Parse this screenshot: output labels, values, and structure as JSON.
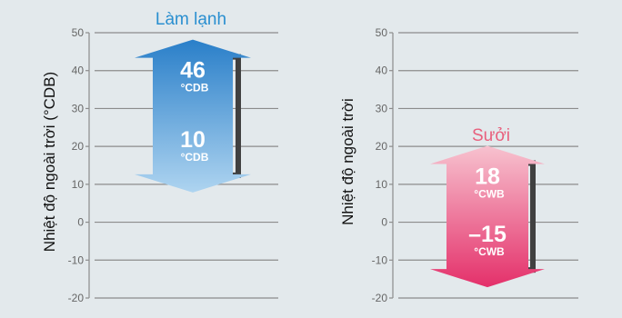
{
  "colors": {
    "panel_bg": "#e3e9ec",
    "grid_line": "#8c8c8c",
    "tick_text": "#666666",
    "cooling_title": "#2a8fd0",
    "cooling_arrow_top": "#2a7fc9",
    "cooling_arrow_bottom": "#aed4f0",
    "heating_title": "#e8607d",
    "heating_arrow_top": "#f7c2cf",
    "heating_arrow_bottom": "#e4306a",
    "bracket": "#404040"
  },
  "chart_data": [
    {
      "type": "range",
      "title": "Làm lạnh",
      "ylabel": "Nhiệt độ ngoài trời (°CDB)",
      "ylim": [
        -20,
        50
      ],
      "yticks": [
        50,
        40,
        30,
        20,
        10,
        0,
        -10,
        -20
      ],
      "ytick_labels": [
        "50",
        "40",
        "30",
        "20",
        "10",
        "0",
        "-10",
        "-20"
      ],
      "range": {
        "max": 46,
        "min": 10
      },
      "max_label": {
        "value": "46",
        "unit": "°CDB"
      },
      "min_label": {
        "value": "10",
        "unit": "°CDB"
      },
      "grid": true
    },
    {
      "type": "range",
      "title": "Sưởi",
      "ylabel": "Nhiệt độ ngoài trời",
      "ylim": [
        -20,
        50
      ],
      "yticks": [
        50,
        40,
        30,
        20,
        10,
        0,
        -10,
        -20
      ],
      "ytick_labels": [
        "50",
        "40",
        "30",
        "20",
        "10",
        "0",
        "-10",
        "-20"
      ],
      "range": {
        "max": 18,
        "min": -15
      },
      "max_label": {
        "value": "18",
        "unit": "°CWB"
      },
      "min_label": {
        "value": "–15",
        "unit": "°CWB"
      },
      "grid": true
    }
  ]
}
